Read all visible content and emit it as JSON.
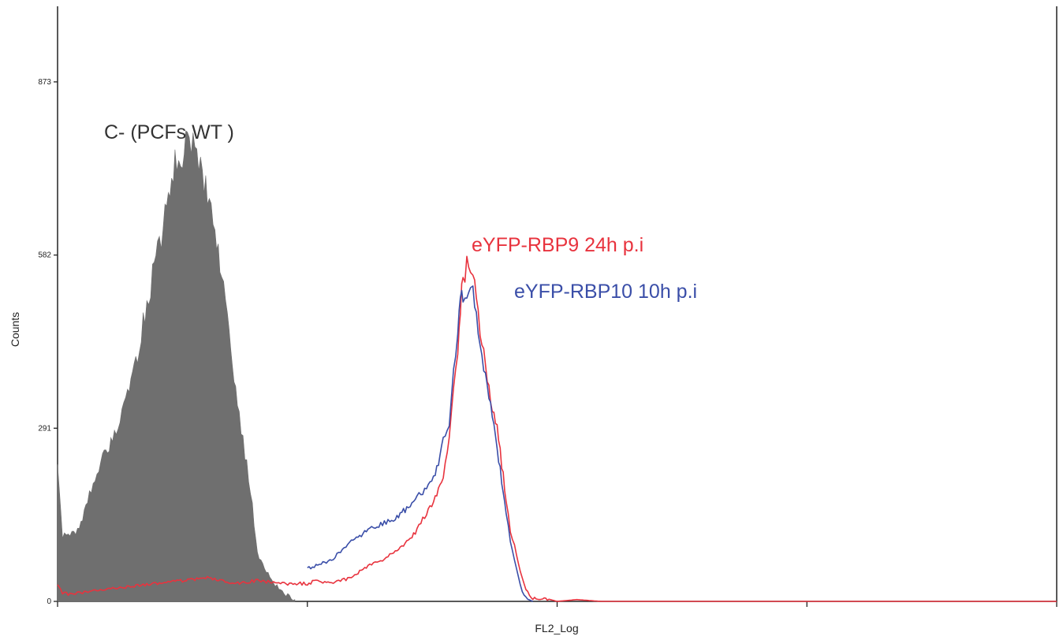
{
  "chart_data": {
    "type": "area",
    "title": "",
    "xlabel": "FL2_Log",
    "ylabel": "Counts",
    "x_scale": "log",
    "x_tick_labels_shown": false,
    "xlim": [
      0,
      1000
    ],
    "ylim": [
      0,
      1000
    ],
    "y_ticks": [
      0,
      291,
      582,
      873
    ],
    "y_tick_labels": [
      "0",
      "291",
      "582",
      "873"
    ],
    "grid": false,
    "legend": "none (series labelled directly on plot)",
    "series": [
      {
        "name": "C- (PCFs WT )",
        "style": "filled",
        "color": "#6f6f6f",
        "x": [
          0,
          0.02,
          0.05,
          0.08,
          0.1,
          0.12,
          0.15,
          0.18,
          0.2,
          0.22,
          0.25,
          0.28,
          0.3,
          0.32,
          0.35,
          0.38,
          0.4,
          0.43,
          0.45,
          0.47,
          0.5,
          0.52,
          0.55,
          0.58,
          0.6,
          0.63,
          0.65,
          0.68,
          0.7,
          0.72,
          0.75,
          0.78,
          0.8,
          0.85,
          0.9,
          0.95
        ],
        "y": [
          230,
          110,
          110,
          120,
          140,
          170,
          210,
          240,
          250,
          275,
          300,
          340,
          380,
          420,
          480,
          540,
          580,
          650,
          700,
          740,
          755,
          770,
          760,
          710,
          680,
          620,
          560,
          480,
          400,
          330,
          250,
          160,
          80,
          40,
          15,
          3
        ]
      },
      {
        "name": "eYFP-RBP9 24h p.i",
        "style": "line",
        "color": "#e8333e",
        "x": [
          0,
          0.02,
          0.05,
          0.1,
          0.2,
          0.3,
          0.4,
          0.5,
          0.6,
          0.7,
          0.8,
          0.9,
          1.0,
          1.1,
          1.25,
          1.5,
          1.75,
          2.0,
          2.25,
          2.5,
          2.75,
          3.0,
          3.25,
          3.5,
          3.7,
          3.85,
          4.0,
          4.1,
          4.2,
          4.35,
          4.5,
          4.6,
          4.75,
          5.0,
          5.25,
          5.5,
          5.75,
          6.0,
          6.25,
          6.5,
          6.75,
          7.0,
          7.25,
          7.5,
          7.75,
          8.0,
          8.5,
          9.0,
          10.0,
          12.0,
          15.0,
          20.0,
          40.0,
          100.0,
          1000.0
        ],
        "y": [
          30,
          15,
          12,
          15,
          20,
          25,
          30,
          35,
          40,
          30,
          35,
          30,
          30,
          35,
          30,
          40,
          60,
          70,
          85,
          100,
          120,
          150,
          175,
          210,
          270,
          350,
          430,
          500,
          540,
          565,
          560,
          550,
          500,
          430,
          380,
          330,
          290,
          230,
          170,
          120,
          95,
          65,
          40,
          20,
          10,
          5,
          3,
          5,
          0,
          3,
          0,
          0,
          0,
          0,
          0
        ]
      },
      {
        "name": "eYFP-RBP10 10h p.i",
        "style": "line",
        "color": "#3a4ea8",
        "x": [
          1.0,
          1.25,
          1.5,
          1.75,
          2.0,
          2.25,
          2.5,
          2.75,
          3.0,
          3.25,
          3.5,
          3.7,
          3.85,
          4.0,
          4.1,
          4.2,
          4.35,
          4.5,
          4.6,
          4.75,
          5.0,
          5.25,
          5.5,
          5.75,
          6.0,
          6.25,
          6.5,
          6.75,
          7.0,
          7.25,
          7.5,
          8.0
        ],
        "y": [
          55,
          70,
          100,
          120,
          130,
          140,
          155,
          180,
          190,
          210,
          270,
          300,
          390,
          460,
          500,
          510,
          520,
          525,
          515,
          480,
          420,
          360,
          320,
          260,
          200,
          150,
          100,
          70,
          40,
          15,
          5,
          0
        ]
      }
    ]
  }
}
